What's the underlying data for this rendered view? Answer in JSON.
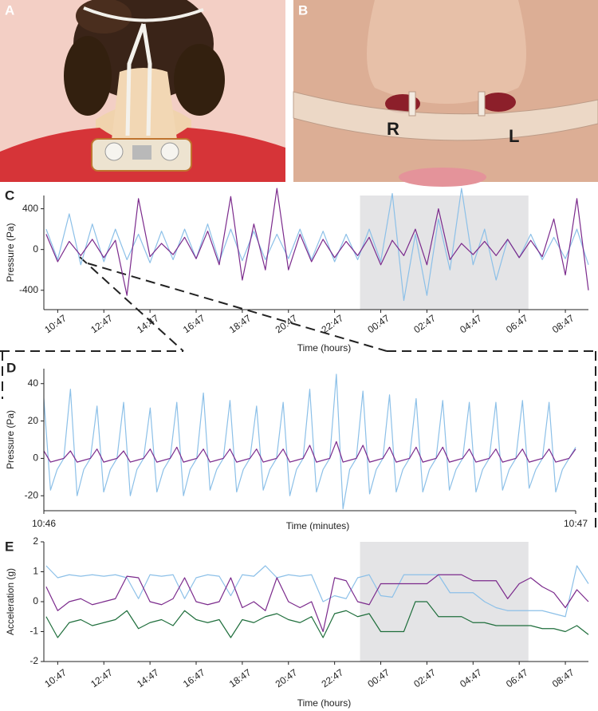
{
  "photos": [
    {
      "label": "A"
    },
    {
      "label": "B",
      "annotations": [
        "R",
        "L"
      ]
    }
  ],
  "chart_data": [
    {
      "type": "line",
      "panel_label": "C",
      "y_label": "Pressure (Pa)",
      "x_label": "Time (hours)",
      "xlim": [
        -0.6,
        23
      ],
      "ylim": [
        -590,
        530
      ],
      "yticks": [
        -400,
        0,
        400
      ],
      "xticks": [
        {
          "value": 0,
          "label": "10:47"
        },
        {
          "value": 2,
          "label": "12:47"
        },
        {
          "value": 4,
          "label": "14:47"
        },
        {
          "value": 6,
          "label": "16:47"
        },
        {
          "value": 8,
          "label": "18:47"
        },
        {
          "value": 10,
          "label": "20:47"
        },
        {
          "value": 12,
          "label": "22:47"
        },
        {
          "value": 14,
          "label": "00:47"
        },
        {
          "value": 16,
          "label": "02:47"
        },
        {
          "value": 18,
          "label": "04:47"
        },
        {
          "value": 20,
          "label": "06:47"
        },
        {
          "value": 22,
          "label": "08:47"
        }
      ],
      "shaded_region": [
        13.1,
        20.4
      ],
      "x": [
        -0.5,
        0,
        0.5,
        1,
        1.5,
        2,
        2.5,
        3,
        3.5,
        4,
        4.5,
        5,
        5.5,
        6,
        6.5,
        7,
        7.5,
        8,
        8.5,
        9,
        9.5,
        10,
        10.5,
        11,
        11.5,
        12,
        12.5,
        13,
        13.5,
        14,
        14.5,
        15,
        15.5,
        16,
        16.5,
        17,
        17.5,
        18,
        18.5,
        19,
        19.5,
        20,
        20.5,
        21,
        21.5,
        22,
        22.5,
        23
      ],
      "series": [
        {
          "color": "#8cc0e8",
          "values": [
            200,
            -100,
            350,
            -150,
            250,
            -120,
            200,
            -100,
            150,
            -130,
            180,
            -100,
            200,
            -90,
            250,
            -120,
            200,
            -110,
            180,
            -100,
            150,
            -90,
            200,
            -100,
            180,
            -120,
            150,
            -100,
            200,
            -120,
            550,
            -500,
            150,
            -450,
            300,
            -200,
            600,
            -150,
            200,
            -300,
            100,
            -80,
            150,
            -100,
            120,
            -90,
            200,
            -150
          ]
        },
        {
          "color": "#7b2a8c",
          "values": [
            150,
            -120,
            80,
            -60,
            100,
            -80,
            90,
            -450,
            500,
            -70,
            60,
            -50,
            120,
            -90,
            180,
            -150,
            520,
            -300,
            250,
            -200,
            600,
            -200,
            150,
            -120,
            100,
            -80,
            80,
            -60,
            120,
            -150,
            90,
            -60,
            200,
            -150,
            400,
            -100,
            60,
            -50,
            80,
            -60,
            100,
            -80,
            90,
            -70,
            300,
            -250,
            500,
            -400
          ]
        }
      ]
    },
    {
      "type": "line",
      "panel_label": "D",
      "y_label": "Pressure (Pa)",
      "x_label": "Time (minutes)",
      "xlim": [
        0,
        60
      ],
      "ylim": [
        -28,
        48
      ],
      "yticks": [
        -20,
        0,
        20,
        40
      ],
      "xticks": [
        {
          "value": 0,
          "label": "10:46"
        },
        {
          "value": 60,
          "label": "10:47"
        }
      ],
      "x": [
        0,
        0.75,
        1.5,
        2.25,
        3,
        3.75,
        4.5,
        5.25,
        6,
        6.75,
        7.5,
        8.25,
        9,
        9.75,
        10.5,
        11.25,
        12,
        12.75,
        13.5,
        14.25,
        15,
        15.75,
        16.5,
        17.25,
        18,
        18.75,
        19.5,
        20.25,
        21,
        21.75,
        22.5,
        23.25,
        24,
        24.75,
        25.5,
        26.25,
        27,
        27.75,
        28.5,
        29.25,
        30,
        30.75,
        31.5,
        32.25,
        33,
        33.75,
        34.5,
        35.25,
        36,
        36.75,
        37.5,
        38.25,
        39,
        39.75,
        40.5,
        41.25,
        42,
        42.75,
        43.5,
        44.25,
        45,
        45.75,
        46.5,
        47.25,
        48,
        48.75,
        49.5,
        50.25,
        51,
        51.75,
        52.5,
        53.25,
        54,
        54.75,
        55.5,
        56.25,
        57,
        57.75,
        58.5,
        59.25,
        60
      ],
      "series": [
        {
          "color": "#8cc0e8",
          "values": [
            32,
            -17,
            -6,
            0,
            37,
            -20,
            -6,
            0,
            28,
            -18,
            -6,
            0,
            30,
            -20,
            -6,
            0,
            27,
            -18,
            -6,
            0,
            30,
            -20,
            -6,
            0,
            35,
            -17,
            -6,
            0,
            31,
            -18,
            -6,
            0,
            28,
            -17,
            -6,
            0,
            30,
            -20,
            -6,
            0,
            37,
            -18,
            -6,
            0,
            45,
            -27,
            -6,
            0,
            36,
            -19,
            -6,
            0,
            34,
            -18,
            -6,
            0,
            32,
            -18,
            -6,
            0,
            31,
            -17,
            -6,
            0,
            30,
            -18,
            -6,
            0,
            30,
            -17,
            -6,
            0,
            31,
            -16,
            -6,
            0,
            30,
            -18,
            -6,
            0,
            6
          ]
        },
        {
          "color": "#7b2a8c",
          "values": [
            4,
            -2,
            -1,
            0,
            4,
            -2,
            -1,
            0,
            5,
            -2,
            -1,
            0,
            4,
            -2,
            -1,
            0,
            5,
            -2,
            -1,
            0,
            6,
            -2,
            -1,
            0,
            5,
            -2,
            -1,
            0,
            5,
            -2,
            -1,
            0,
            5,
            -2,
            -1,
            0,
            5,
            -2,
            -1,
            0,
            7,
            -2,
            -1,
            0,
            9,
            -2,
            -1,
            0,
            7,
            -2,
            -1,
            0,
            6,
            -2,
            -1,
            0,
            6,
            -2,
            -1,
            0,
            6,
            -2,
            -1,
            0,
            5,
            -2,
            -1,
            0,
            5,
            -2,
            -1,
            0,
            5,
            -2,
            -1,
            0,
            5,
            -2,
            -1,
            0,
            5
          ]
        }
      ]
    },
    {
      "type": "line",
      "panel_label": "E",
      "y_label": "Acceleration (g)",
      "x_label": "Time (hours)",
      "xlim": [
        -0.6,
        23
      ],
      "ylim": [
        -2,
        2
      ],
      "yticks": [
        -2,
        -1,
        0,
        1,
        2
      ],
      "xticks": [
        {
          "value": 0,
          "label": "10:47"
        },
        {
          "value": 2,
          "label": "12:47"
        },
        {
          "value": 4,
          "label": "14:47"
        },
        {
          "value": 6,
          "label": "16:47"
        },
        {
          "value": 8,
          "label": "18:47"
        },
        {
          "value": 10,
          "label": "20:47"
        },
        {
          "value": 12,
          "label": "22:47"
        },
        {
          "value": 14,
          "label": "00:47"
        },
        {
          "value": 16,
          "label": "02:47"
        },
        {
          "value": 18,
          "label": "04:47"
        },
        {
          "value": 20,
          "label": "06:47"
        },
        {
          "value": 22,
          "label": "08:47"
        }
      ],
      "shaded_region": [
        13.1,
        20.4
      ],
      "x": [
        -0.5,
        0,
        0.5,
        1,
        1.5,
        2,
        2.5,
        3,
        3.5,
        4,
        4.5,
        5,
        5.5,
        6,
        6.5,
        7,
        7.5,
        8,
        8.5,
        9,
        9.5,
        10,
        10.5,
        11,
        11.5,
        12,
        12.5,
        13,
        13.5,
        14,
        14.5,
        15,
        15.5,
        16,
        16.5,
        17,
        17.5,
        18,
        18.5,
        19,
        19.5,
        20,
        20.5,
        21,
        21.5,
        22,
        22.5,
        23
      ],
      "series": [
        {
          "color": "#8cc0e8",
          "values": [
            1.2,
            0.8,
            0.9,
            0.85,
            0.9,
            0.85,
            0.9,
            0.8,
            0.1,
            0.9,
            0.85,
            0.9,
            0.1,
            0.8,
            0.9,
            0.85,
            0.2,
            0.9,
            0.85,
            1.2,
            0.8,
            0.9,
            0.85,
            0.9,
            0.0,
            0.2,
            0.1,
            0.8,
            0.9,
            0.2,
            0.15,
            0.9,
            0.9,
            0.9,
            0.9,
            0.3,
            0.3,
            0.3,
            0.0,
            -0.2,
            -0.3,
            -0.3,
            -0.3,
            -0.3,
            -0.4,
            -0.5,
            1.2,
            0.6
          ]
        },
        {
          "color": "#7b2a8c",
          "values": [
            0.5,
            -0.3,
            0.0,
            0.1,
            -0.1,
            0.0,
            0.1,
            0.85,
            0.8,
            0.0,
            -0.1,
            0.1,
            0.8,
            0.0,
            -0.1,
            0.0,
            0.8,
            -0.2,
            0.0,
            -0.3,
            0.8,
            0.0,
            -0.2,
            0.0,
            -1.0,
            0.8,
            0.7,
            0.0,
            -0.1,
            0.6,
            0.6,
            0.6,
            0.6,
            0.6,
            0.9,
            0.9,
            0.9,
            0.7,
            0.7,
            0.7,
            0.1,
            0.6,
            0.8,
            0.5,
            0.3,
            -0.2,
            0.4,
            0.0
          ]
        },
        {
          "color": "#1f6e3c",
          "values": [
            -0.5,
            -1.2,
            -0.7,
            -0.6,
            -0.8,
            -0.7,
            -0.6,
            -0.3,
            -0.9,
            -0.7,
            -0.6,
            -0.8,
            -0.3,
            -0.6,
            -0.7,
            -0.6,
            -1.2,
            -0.6,
            -0.7,
            -0.5,
            -0.4,
            -0.6,
            -0.7,
            -0.5,
            -1.2,
            -0.4,
            -0.3,
            -0.5,
            -0.4,
            -1.0,
            -1.0,
            -1.0,
            0.0,
            0.0,
            -0.5,
            -0.5,
            -0.5,
            -0.7,
            -0.7,
            -0.8,
            -0.8,
            -0.8,
            -0.8,
            -0.9,
            -0.9,
            -1.0,
            -0.8,
            -1.1
          ]
        }
      ]
    }
  ]
}
